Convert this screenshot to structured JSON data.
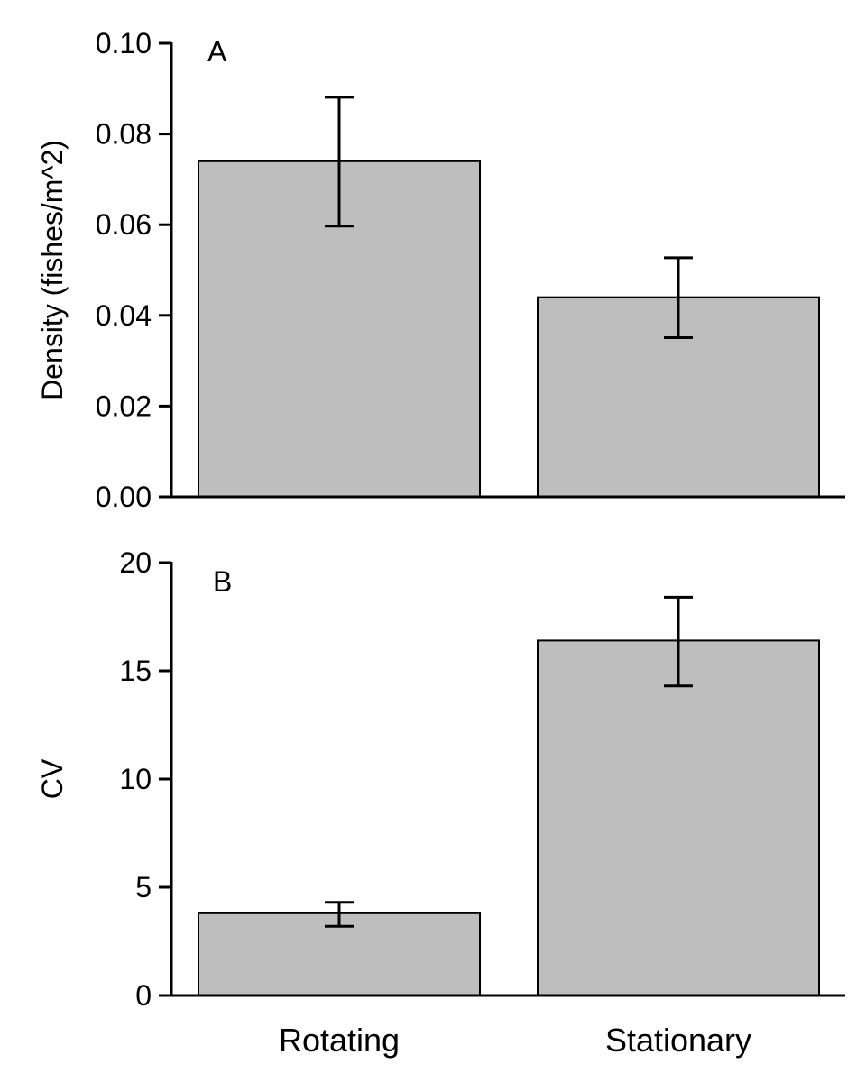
{
  "chart_data": [
    {
      "type": "bar",
      "panel_label": "A",
      "title": "",
      "xlabel": "",
      "ylabel": "Density (fishes/m^2)",
      "categories": [
        "Rotating",
        "Stationary"
      ],
      "values": [
        0.074,
        0.044
      ],
      "error_low": [
        0.0597,
        0.0351
      ],
      "error_high": [
        0.0881,
        0.0527
      ],
      "ylim": [
        0,
        0.1
      ],
      "yticks": [
        0,
        0.02,
        0.04,
        0.06,
        0.08,
        0.1
      ],
      "ytick_labels": [
        "0.00",
        "0.02",
        "0.04",
        "0.06",
        "0.08",
        "0.10"
      ],
      "bar_color": "#bebebe",
      "grid": false,
      "show_category_labels": false
    },
    {
      "type": "bar",
      "panel_label": "B",
      "title": "",
      "xlabel": "",
      "ylabel": "CV",
      "categories": [
        "Rotating",
        "Stationary"
      ],
      "values": [
        3.8,
        16.4
      ],
      "error_low": [
        3.2,
        14.3
      ],
      "error_high": [
        4.3,
        18.4
      ],
      "ylim": [
        0,
        20
      ],
      "yticks": [
        0,
        5,
        10,
        15,
        20
      ],
      "ytick_labels": [
        "0",
        "5",
        "10",
        "15",
        "20"
      ],
      "bar_color": "#bebebe",
      "grid": false,
      "show_category_labels": true
    }
  ]
}
